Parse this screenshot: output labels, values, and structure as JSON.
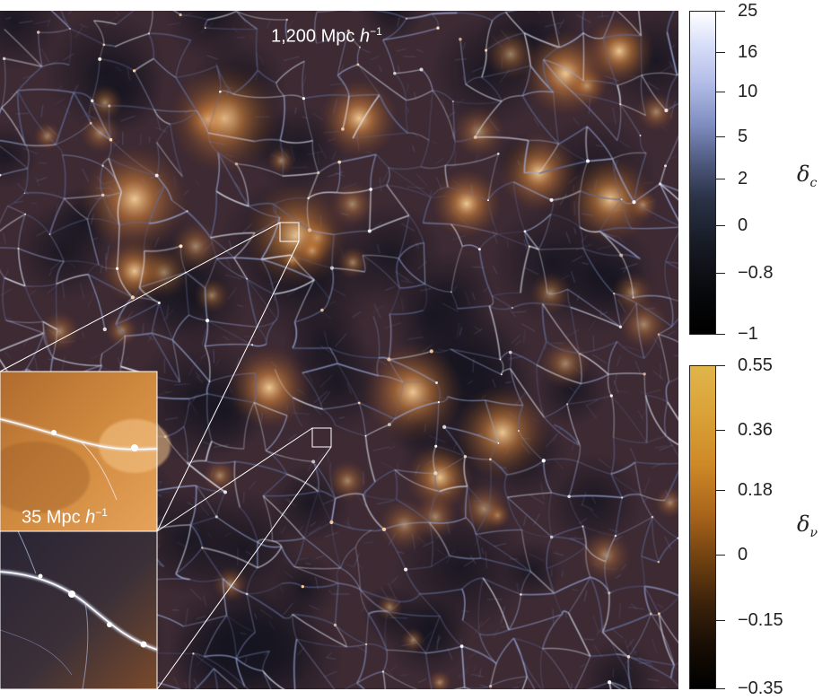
{
  "main_panel": {
    "scale_label": {
      "value": "1,200 Mpc",
      "h": "h",
      "exp": "−1"
    }
  },
  "inset_panel": {
    "scale_label": {
      "value": "35 Mpc",
      "h": "h",
      "exp": "−1"
    }
  },
  "colorbar_c": {
    "symbol": "δ",
    "subscript": "c",
    "ticks": [
      "25",
      "16",
      "10",
      "5",
      "2",
      "0",
      "−0.8",
      "−1"
    ],
    "colors": [
      "#ffffff",
      "#b3bde8",
      "#4a5478",
      "#000000"
    ]
  },
  "colorbar_v": {
    "symbol": "δ",
    "subscript": "ν",
    "ticks": [
      "0.55",
      "0.36",
      "0.18",
      "0",
      "−0.15",
      "−0.35"
    ],
    "colors": [
      "#e0b54b",
      "#cf8a28",
      "#6f4011",
      "#000000"
    ]
  },
  "colors": {
    "void": "#1f1b2d",
    "filament": "#c8d6ff",
    "halo": "#f0a050"
  }
}
